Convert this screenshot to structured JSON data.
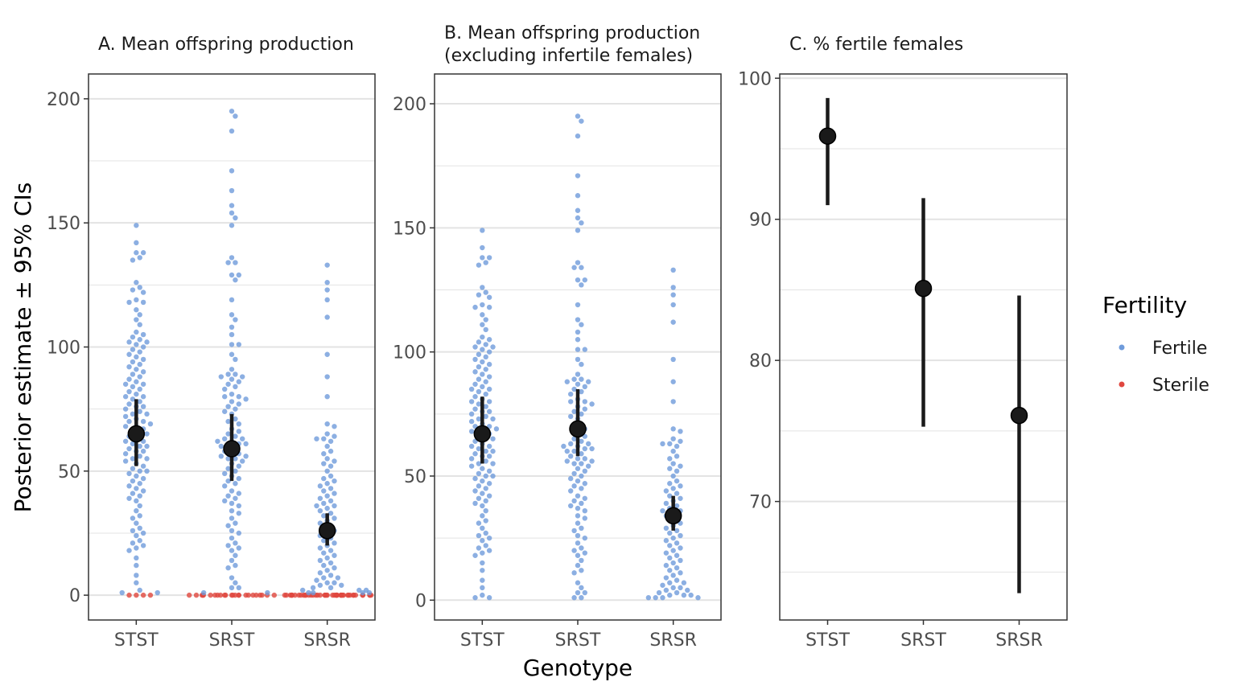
{
  "figure": {
    "ylabel": "Posterior estimate ± 95% CIs",
    "xlabel": "Genotype"
  },
  "legend": {
    "title": "Fertility",
    "items": [
      {
        "label": "Fertile",
        "color": "#6f9bdb"
      },
      {
        "label": "Sterile",
        "color": "#e0473f"
      }
    ]
  },
  "colors": {
    "fertile": "#6f9bdb",
    "sterile": "#e0473f",
    "estimate": "#1a1a1a",
    "gridline": "#e3e3e3",
    "frame": "#333333"
  },
  "chart_data": [
    {
      "type": "scatter",
      "title": "A. Mean offspring production",
      "categories": [
        "STST",
        "SRST",
        "SRSR"
      ],
      "ylim": [
        -10,
        210
      ],
      "yticks": [
        0,
        50,
        100,
        150,
        200
      ],
      "grid": true,
      "estimates": [
        {
          "genotype": "STST",
          "mean": 65,
          "lower": 52,
          "upper": 79
        },
        {
          "genotype": "SRST",
          "mean": 59,
          "lower": 46,
          "upper": 73
        },
        {
          "genotype": "SRSR",
          "mean": 26,
          "lower": 20,
          "upper": 33
        }
      ],
      "points": {
        "STST": {
          "fertile": [
            149,
            142,
            138,
            138,
            136,
            135,
            126,
            124,
            123,
            122,
            119,
            118,
            118,
            115,
            113,
            111,
            109,
            106,
            105,
            104,
            103,
            102,
            102,
            101,
            100,
            99,
            98,
            97,
            96,
            95,
            94,
            93,
            92,
            91,
            90,
            89,
            88,
            87,
            86,
            85,
            85,
            84,
            83,
            82,
            81,
            80,
            80,
            79,
            78,
            77,
            76,
            76,
            75,
            74,
            73,
            73,
            72,
            71,
            70,
            70,
            69,
            68,
            68,
            67,
            66,
            65,
            65,
            64,
            63,
            62,
            62,
            61,
            60,
            60,
            59,
            58,
            58,
            57,
            56,
            55,
            55,
            54,
            53,
            52,
            51,
            50,
            50,
            49,
            48,
            47,
            46,
            45,
            44,
            43,
            42,
            41,
            40,
            39,
            38,
            36,
            34,
            32,
            31,
            29,
            27,
            26,
            25,
            24,
            22,
            21,
            20,
            19,
            18,
            15,
            12,
            8,
            5,
            2,
            1,
            1
          ],
          "sterile": [
            0,
            0,
            0,
            0
          ]
        },
        "SRST": {
          "fertile": [
            195,
            193,
            187,
            171,
            163,
            157,
            154,
            152,
            149,
            136,
            134,
            134,
            129,
            129,
            127,
            119,
            113,
            111,
            108,
            105,
            101,
            101,
            97,
            95,
            91,
            89,
            89,
            88,
            88,
            87,
            86,
            85,
            84,
            83,
            81,
            80,
            80,
            79,
            78,
            77,
            76,
            75,
            74,
            73,
            71,
            70,
            69,
            67,
            66,
            65,
            64,
            63,
            63,
            62,
            62,
            61,
            61,
            60,
            60,
            59,
            58,
            57,
            57,
            56,
            56,
            55,
            55,
            54,
            53,
            52,
            51,
            50,
            49,
            48,
            47,
            46,
            45,
            44,
            42,
            41,
            40,
            39,
            38,
            37,
            36,
            34,
            33,
            31,
            29,
            28,
            26,
            25,
            23,
            21,
            20,
            19,
            18,
            16,
            14,
            12,
            11,
            7,
            5,
            3,
            3,
            1,
            1
          ],
          "sterile": [
            0,
            0,
            0,
            0,
            0,
            0,
            0,
            0,
            0,
            0,
            0,
            0,
            0,
            0,
            0,
            0,
            0,
            0,
            0,
            0,
            0,
            0,
            0,
            0
          ]
        },
        "SRSR": {
          "fertile": [
            133,
            126,
            123,
            119,
            112,
            97,
            88,
            80,
            69,
            68,
            65,
            64,
            63,
            63,
            62,
            60,
            58,
            57,
            55,
            54,
            53,
            52,
            50,
            48,
            47,
            46,
            45,
            44,
            43,
            42,
            41,
            40,
            39,
            38,
            37,
            36,
            36,
            35,
            34,
            33,
            32,
            31,
            30,
            29,
            28,
            27,
            26,
            25,
            24,
            23,
            22,
            21,
            20,
            19,
            18,
            17,
            16,
            15,
            14,
            13,
            12,
            11,
            10,
            9,
            8,
            7,
            7,
            6,
            5,
            5,
            4,
            4,
            3,
            3,
            2,
            2,
            2,
            1,
            1,
            1,
            1
          ],
          "sterile": [
            0,
            0,
            0,
            0,
            0,
            0,
            0,
            0,
            0,
            0,
            0,
            0,
            0,
            0,
            0,
            0,
            0,
            0,
            0,
            0,
            0,
            0,
            0,
            0,
            0,
            0,
            0,
            0,
            0,
            0,
            0,
            0,
            0,
            0,
            0,
            0,
            0,
            0,
            0,
            0,
            0,
            0,
            0,
            0
          ]
        }
      }
    },
    {
      "type": "scatter",
      "title": "B. Mean offspring production\n(excluding infertile females)",
      "categories": [
        "STST",
        "SRST",
        "SRSR"
      ],
      "ylim": [
        -8,
        212
      ],
      "yticks": [
        0,
        50,
        100,
        150,
        200
      ],
      "grid": true,
      "estimates": [
        {
          "genotype": "STST",
          "mean": 67,
          "lower": 55,
          "upper": 82
        },
        {
          "genotype": "SRST",
          "mean": 69,
          "lower": 58,
          "upper": 85
        },
        {
          "genotype": "SRSR",
          "mean": 34,
          "lower": 28,
          "upper": 42
        }
      ],
      "points": {
        "STST": {
          "fertile": [
            149,
            142,
            138,
            138,
            136,
            135,
            126,
            124,
            123,
            122,
            119,
            118,
            118,
            115,
            113,
            111,
            109,
            106,
            105,
            104,
            103,
            102,
            102,
            101,
            100,
            99,
            98,
            97,
            96,
            95,
            94,
            93,
            92,
            91,
            90,
            89,
            88,
            87,
            86,
            85,
            85,
            84,
            83,
            82,
            81,
            80,
            80,
            79,
            78,
            77,
            76,
            76,
            75,
            74,
            73,
            73,
            72,
            71,
            70,
            70,
            69,
            68,
            68,
            67,
            66,
            65,
            65,
            64,
            63,
            62,
            62,
            61,
            60,
            60,
            59,
            58,
            58,
            57,
            56,
            55,
            55,
            54,
            53,
            52,
            51,
            50,
            50,
            49,
            48,
            47,
            46,
            45,
            44,
            43,
            42,
            41,
            40,
            39,
            38,
            36,
            34,
            32,
            31,
            29,
            27,
            26,
            25,
            24,
            22,
            21,
            20,
            19,
            18,
            15,
            12,
            8,
            5,
            2,
            1,
            1
          ],
          "sterile": []
        },
        "SRST": {
          "fertile": [
            195,
            193,
            187,
            171,
            163,
            157,
            154,
            152,
            149,
            136,
            134,
            134,
            129,
            129,
            127,
            119,
            113,
            111,
            108,
            105,
            101,
            101,
            97,
            95,
            91,
            89,
            89,
            88,
            88,
            87,
            86,
            85,
            84,
            83,
            81,
            80,
            80,
            79,
            78,
            77,
            76,
            75,
            74,
            73,
            71,
            70,
            69,
            67,
            66,
            65,
            64,
            63,
            63,
            62,
            62,
            61,
            61,
            60,
            60,
            59,
            58,
            57,
            57,
            56,
            56,
            55,
            55,
            54,
            53,
            52,
            51,
            50,
            49,
            48,
            47,
            46,
            45,
            44,
            42,
            41,
            40,
            39,
            38,
            37,
            36,
            34,
            33,
            31,
            29,
            28,
            26,
            25,
            23,
            21,
            20,
            19,
            18,
            16,
            14,
            12,
            11,
            7,
            5,
            3,
            3,
            1,
            1
          ],
          "sterile": []
        },
        "SRSR": {
          "fertile": [
            133,
            126,
            123,
            119,
            112,
            97,
            88,
            80,
            69,
            68,
            65,
            64,
            63,
            63,
            62,
            60,
            58,
            57,
            55,
            54,
            53,
            52,
            50,
            48,
            47,
            46,
            45,
            44,
            43,
            42,
            41,
            40,
            39,
            38,
            37,
            36,
            36,
            35,
            34,
            33,
            32,
            31,
            30,
            29,
            28,
            27,
            26,
            25,
            24,
            23,
            22,
            21,
            20,
            19,
            18,
            17,
            16,
            15,
            14,
            13,
            12,
            11,
            10,
            9,
            8,
            7,
            7,
            6,
            5,
            5,
            4,
            4,
            3,
            3,
            2,
            2,
            2,
            1,
            1,
            1,
            1
          ],
          "sterile": []
        }
      }
    },
    {
      "type": "scatter",
      "title": "C. % fertile females",
      "categories": [
        "STST",
        "SRST",
        "SRSR"
      ],
      "ylim": [
        61.6,
        100.3
      ],
      "yticks": [
        70,
        80,
        90,
        100
      ],
      "grid": true,
      "estimates": [
        {
          "genotype": "STST",
          "mean": 95.9,
          "lower": 91.0,
          "upper": 98.6
        },
        {
          "genotype": "SRST",
          "mean": 85.1,
          "lower": 75.3,
          "upper": 91.5
        },
        {
          "genotype": "SRSR",
          "mean": 76.1,
          "lower": 63.5,
          "upper": 84.6
        }
      ],
      "points": null
    }
  ]
}
